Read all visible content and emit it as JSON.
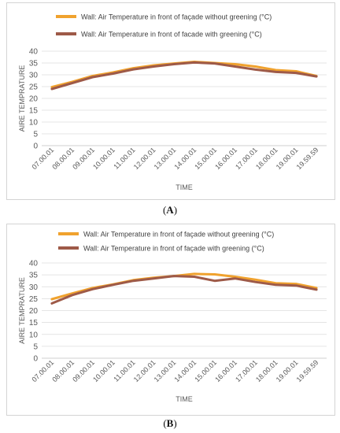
{
  "colors": {
    "without": "#F0A22E",
    "with": "#9E5A48",
    "grid": "#dcdcdc",
    "axis": "#bfbfbf",
    "text": "#595959"
  },
  "chart_data": [
    {
      "type": "line",
      "panel_label": "A",
      "xlabel": "TIME",
      "ylabel": "AIRE TEMPRATURE",
      "ylim": [
        0,
        40
      ],
      "yticks": [
        0,
        5,
        10,
        15,
        20,
        25,
        30,
        35,
        40
      ],
      "grid": true,
      "legend_position": "top",
      "x": [
        "07.00.01",
        "08.00.01",
        "09.00.01",
        "10.00.01",
        "11.00.01",
        "12.00.01",
        "13.00.01",
        "14.00.01",
        "15.00.01",
        "16.00.01",
        "17.00.01",
        "18.00.01",
        "19.00.01",
        "19.59.59"
      ],
      "series": [
        {
          "name": "Wall: Air Temperature in front of façade without greening  (°C)",
          "values": [
            24.8,
            27.0,
            29.5,
            31.0,
            32.8,
            34.0,
            34.8,
            35.5,
            35.0,
            34.5,
            33.5,
            32.0,
            31.5,
            29.5
          ]
        },
        {
          "name": "Wall: Air Temperature in front of facade with greening  (°C)",
          "values": [
            24.0,
            26.5,
            29.0,
            30.5,
            32.3,
            33.5,
            34.5,
            35.2,
            34.8,
            33.5,
            32.2,
            31.2,
            30.8,
            29.3
          ]
        }
      ]
    },
    {
      "type": "line",
      "panel_label": "B",
      "xlabel": "TIME",
      "ylabel": "AIRE TEMPRATURE",
      "ylim": [
        0,
        40
      ],
      "yticks": [
        0,
        5,
        10,
        15,
        20,
        25,
        30,
        35,
        40
      ],
      "grid": true,
      "legend_position": "top",
      "x": [
        "07.00.01",
        "08.00.01",
        "09.00.01",
        "10.00.01",
        "11.00.01",
        "12.00.01",
        "13.00.01",
        "14.00.01",
        "15.00.01",
        "16.00.01",
        "17.00.01",
        "18.00.01",
        "19.00.01",
        "19.59.59"
      ],
      "series": [
        {
          "name": "Wall: Air Temperature in front of façade without greening  (°C)",
          "values": [
            24.8,
            27.2,
            29.5,
            31.0,
            32.8,
            33.8,
            34.5,
            35.4,
            35.2,
            34.2,
            33.0,
            31.5,
            31.2,
            29.5
          ]
        },
        {
          "name": "Wall: Air Temperature in front of façade with greening  (°C)",
          "values": [
            23.0,
            26.5,
            29.0,
            30.8,
            32.5,
            33.5,
            34.5,
            34.2,
            32.5,
            33.5,
            32.0,
            30.8,
            30.5,
            28.8
          ]
        }
      ]
    }
  ]
}
